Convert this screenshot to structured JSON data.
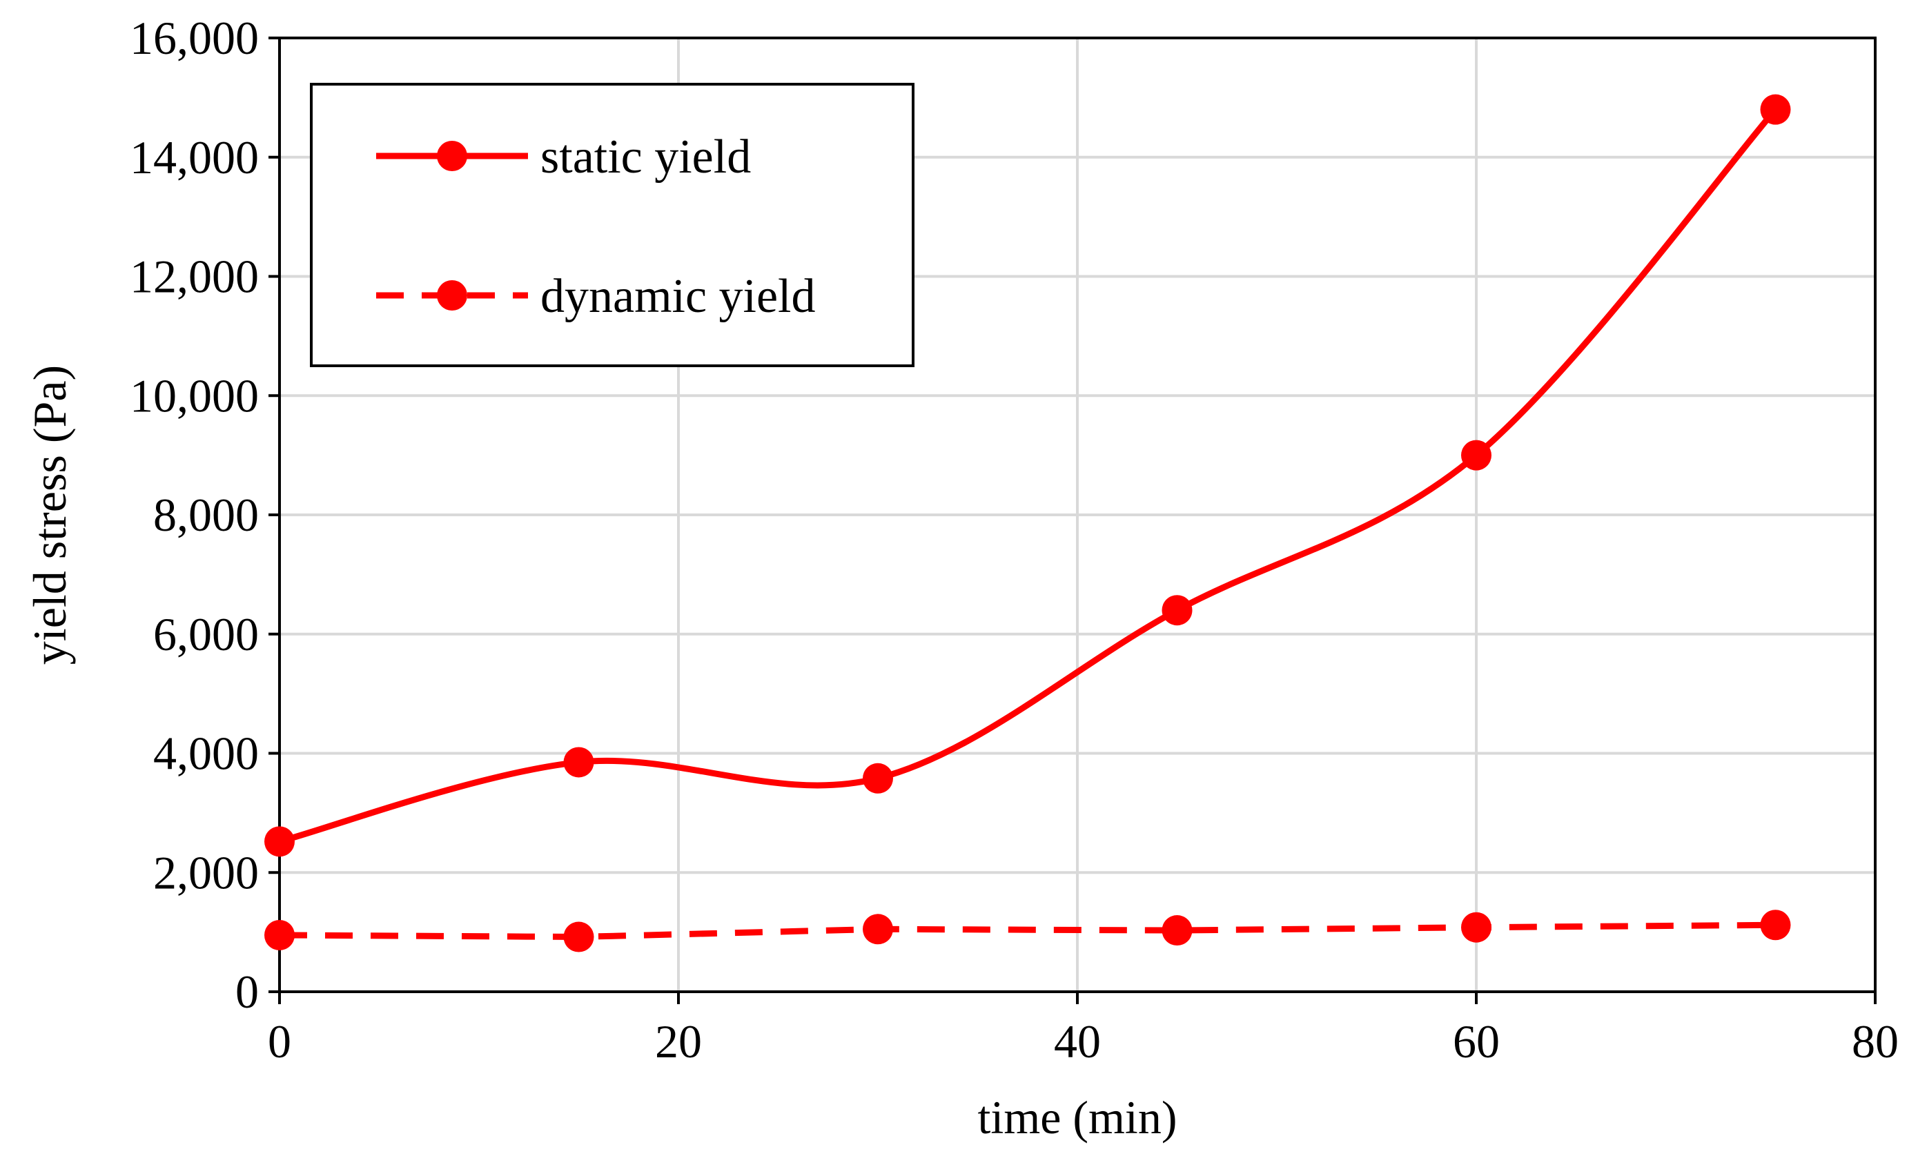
{
  "chart_data": {
    "type": "line",
    "title": "",
    "xlabel": "time (min)",
    "ylabel": "yield stress (Pa)",
    "xlim": [
      0,
      80
    ],
    "ylim": [
      0,
      16000
    ],
    "x_ticks": [
      0,
      20,
      40,
      60,
      80
    ],
    "y_ticks": [
      0,
      2000,
      4000,
      6000,
      8000,
      10000,
      12000,
      14000,
      16000
    ],
    "x_tick_labels": [
      "0",
      "20",
      "40",
      "60",
      "80"
    ],
    "y_tick_labels": [
      "0",
      "2,000",
      "4,000",
      "6,000",
      "8,000",
      "10,000",
      "12,000",
      "14,000",
      "16,000"
    ],
    "grid": true,
    "legend_position": "top-left",
    "x": [
      0,
      15,
      30,
      45,
      60,
      75
    ],
    "series": [
      {
        "name": "static yield",
        "values": [
          2520,
          3850,
          3580,
          6400,
          9000,
          14800
        ],
        "color": "#ff0000",
        "line_style": "solid",
        "smooth": true
      },
      {
        "name": "dynamic yield",
        "values": [
          950,
          920,
          1050,
          1030,
          1080,
          1120
        ],
        "color": "#ff0000",
        "line_style": "dashed",
        "smooth": false
      }
    ]
  }
}
